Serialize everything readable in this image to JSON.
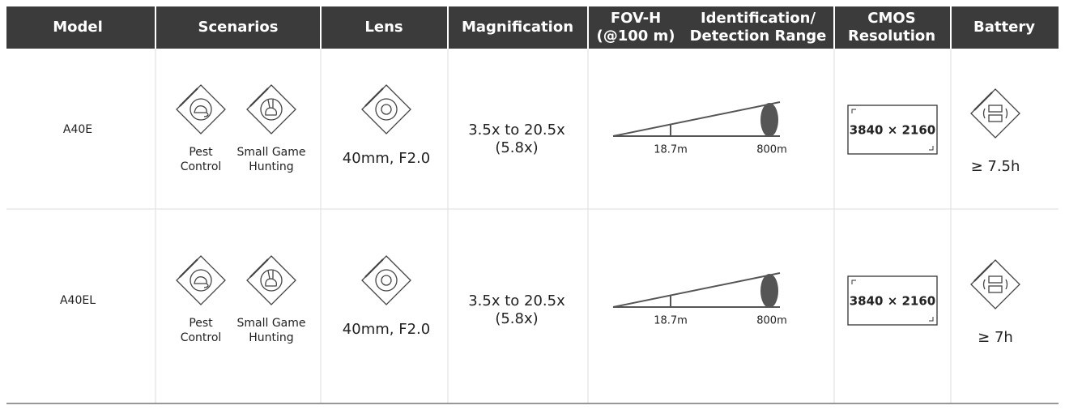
{
  "table": {
    "header": [
      "Model",
      "Scenarios",
      "Lens",
      "Magnification",
      [
        "FOV-H",
        "(@100 m)"
      ],
      [
        "Identification/",
        "Detection Range"
      ],
      [
        "CMOS",
        "Resolution"
      ],
      "Battery"
    ],
    "rows": [
      {
        "model": "A40E",
        "scenarios": [
          [
            "Pest",
            "Control"
          ],
          [
            "Small Game",
            "Hunting"
          ]
        ],
        "lens": "40mm, F2.0",
        "magnification": [
          "3.5x to 20.5x",
          "(5.8x)"
        ],
        "fov": "18.7m",
        "range": "800m",
        "resolution": "3840 × 2160",
        "battery": "≥ 7.5h"
      },
      {
        "model": "A40EL",
        "scenarios": [
          [
            "Pest",
            "Control"
          ],
          [
            "Small Game",
            "Hunting"
          ]
        ],
        "lens": "40mm, F2.0",
        "magnification": [
          "3.5x to 20.5x",
          "(5.8x)"
        ],
        "fov": "18.7m",
        "range": "800m",
        "resolution": "3840 × 2160",
        "battery": "≥ 7h"
      }
    ]
  }
}
